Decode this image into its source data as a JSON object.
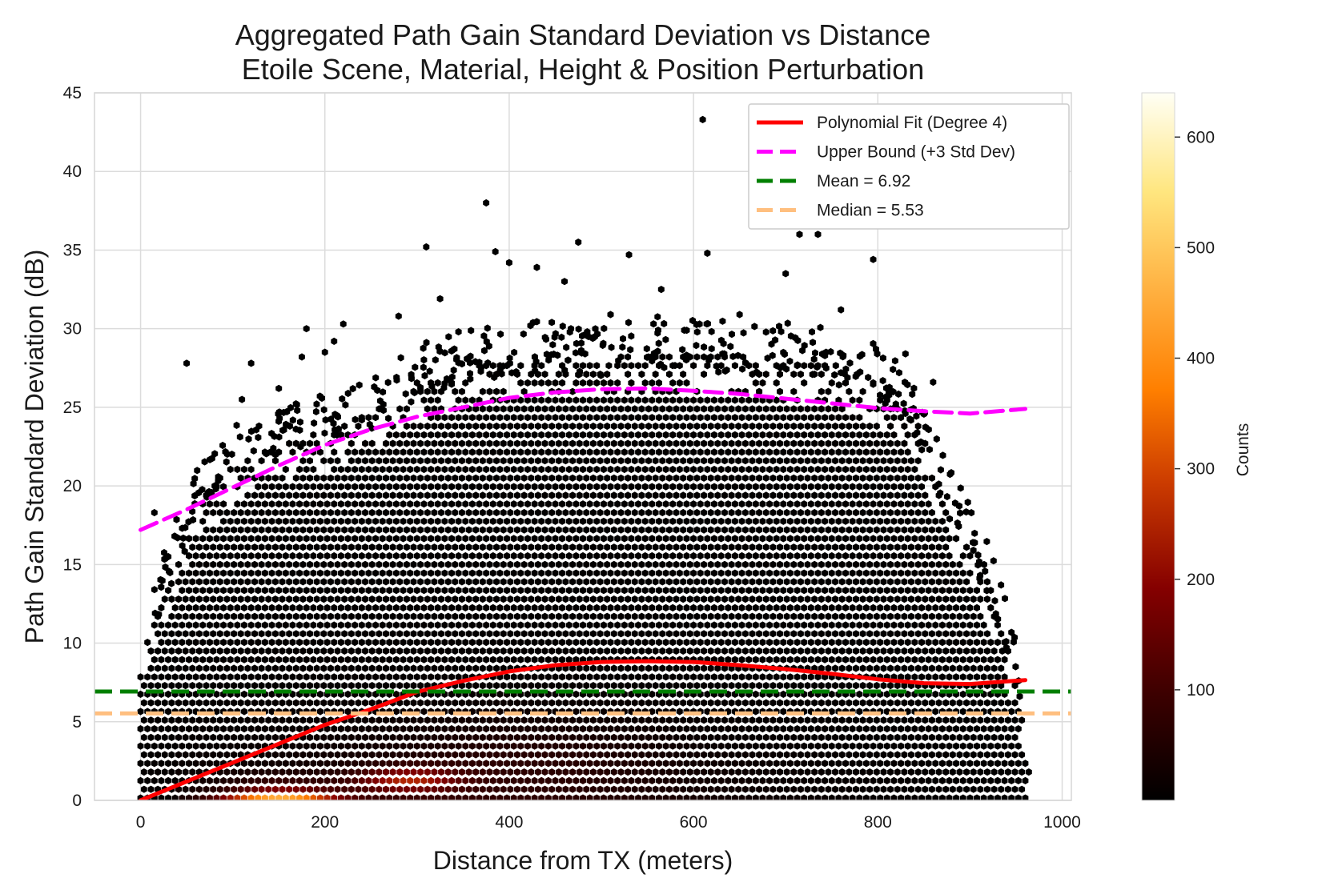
{
  "chart_data": {
    "type": "hexbin",
    "title": [
      "Aggregated Path Gain Standard Deviation vs Distance",
      "Etoile Scene, Material, Height & Position Perturbation"
    ],
    "xlabel": "Distance from TX (meters)",
    "ylabel": "Path Gain Standard Deviation (dB)",
    "xlim": [
      -50,
      1010
    ],
    "ylim": [
      0,
      45
    ],
    "xticks": [
      0,
      200,
      400,
      600,
      800,
      1000
    ],
    "yticks": [
      0,
      5,
      10,
      15,
      20,
      25,
      30,
      35,
      40,
      45
    ],
    "grid": true,
    "colorbar": {
      "label": "Counts",
      "min": 0,
      "max": 640,
      "ticks": [
        100,
        200,
        300,
        400,
        500,
        600
      ],
      "colormap": "afmhot"
    },
    "legend": {
      "location": "top-right",
      "entries": [
        {
          "label": "Polynomial Fit (Degree 4)",
          "color": "#ff0000",
          "style": "solid"
        },
        {
          "label": "Upper Bound (+3 Std Dev)",
          "color": "#ff00ff",
          "style": "dashed"
        },
        {
          "label": "Mean = 6.92",
          "color": "#007f00",
          "style": "dashed"
        },
        {
          "label": "Median = 5.53",
          "color": "#ffbf7f",
          "style": "dashed"
        }
      ]
    },
    "series": [
      {
        "name": "Polynomial Fit (Degree 4)",
        "type": "line",
        "x": [
          0,
          50,
          100,
          150,
          200,
          250,
          300,
          350,
          400,
          450,
          500,
          550,
          600,
          650,
          700,
          750,
          800,
          850,
          900,
          960
        ],
        "y": [
          0.0,
          1.2,
          2.4,
          3.6,
          4.8,
          5.8,
          6.9,
          7.6,
          8.2,
          8.6,
          8.8,
          8.85,
          8.8,
          8.6,
          8.35,
          8.05,
          7.7,
          7.45,
          7.4,
          7.65
        ]
      },
      {
        "name": "Upper Bound (+3 Std Dev)",
        "type": "line",
        "x": [
          0,
          50,
          100,
          150,
          200,
          250,
          300,
          350,
          400,
          450,
          500,
          550,
          600,
          650,
          700,
          750,
          800,
          850,
          900,
          960
        ],
        "y": [
          17.2,
          18.5,
          19.9,
          21.3,
          22.6,
          23.6,
          24.4,
          25.0,
          25.6,
          25.95,
          26.15,
          26.2,
          26.05,
          25.85,
          25.55,
          25.25,
          24.95,
          24.75,
          24.6,
          24.9
        ]
      },
      {
        "name": "Mean = 6.92",
        "type": "hline",
        "y": 6.92
      },
      {
        "name": "Median = 5.53",
        "type": "hline",
        "y": 5.53
      }
    ],
    "density": {
      "x_range": [
        0,
        965
      ],
      "support_upper": [
        [
          0,
          9
        ],
        [
          25,
          13
        ],
        [
          60,
          18
        ],
        [
          100,
          21
        ],
        [
          150,
          22
        ],
        [
          200,
          23
        ],
        [
          250,
          24
        ],
        [
          300,
          26
        ],
        [
          350,
          27
        ],
        [
          400,
          27.5
        ],
        [
          450,
          27.5
        ],
        [
          500,
          27.5
        ],
        [
          550,
          28
        ],
        [
          600,
          28
        ],
        [
          650,
          27.5
        ],
        [
          700,
          27.5
        ],
        [
          750,
          27
        ],
        [
          800,
          26
        ],
        [
          840,
          24
        ],
        [
          870,
          19
        ],
        [
          900,
          16
        ],
        [
          930,
          12
        ],
        [
          950,
          7
        ],
        [
          965,
          2
        ]
      ],
      "peak": {
        "x": 150,
        "y": 0.3,
        "count": 640
      }
    },
    "scatter_outliers": [
      [
        15,
        18.3
      ],
      [
        30,
        15.5
      ],
      [
        50,
        27.8
      ],
      [
        110,
        25.5
      ],
      [
        120,
        27.8
      ],
      [
        150,
        26.2
      ],
      [
        170,
        24.8
      ],
      [
        175,
        28.2
      ],
      [
        180,
        30
      ],
      [
        200,
        28.5
      ],
      [
        210,
        29.2
      ],
      [
        220,
        30.3
      ],
      [
        240,
        24.2
      ],
      [
        280,
        30.8
      ],
      [
        310,
        35.2
      ],
      [
        325,
        31.9
      ],
      [
        345,
        29.8
      ],
      [
        375,
        38
      ],
      [
        385,
        34.9
      ],
      [
        400,
        34.2
      ],
      [
        430,
        33.9
      ],
      [
        460,
        33
      ],
      [
        475,
        35.5
      ],
      [
        510,
        30.9
      ],
      [
        530,
        34.7
      ],
      [
        565,
        32.5
      ],
      [
        590,
        29.9
      ],
      [
        610,
        43.3
      ],
      [
        615,
        34.8
      ],
      [
        650,
        30.9
      ],
      [
        700,
        33.5
      ],
      [
        715,
        36
      ],
      [
        735,
        36
      ],
      [
        760,
        31.2
      ],
      [
        795,
        34.4
      ],
      [
        830,
        28.4
      ],
      [
        860,
        26.6
      ],
      [
        935,
        9.5
      ]
    ]
  }
}
